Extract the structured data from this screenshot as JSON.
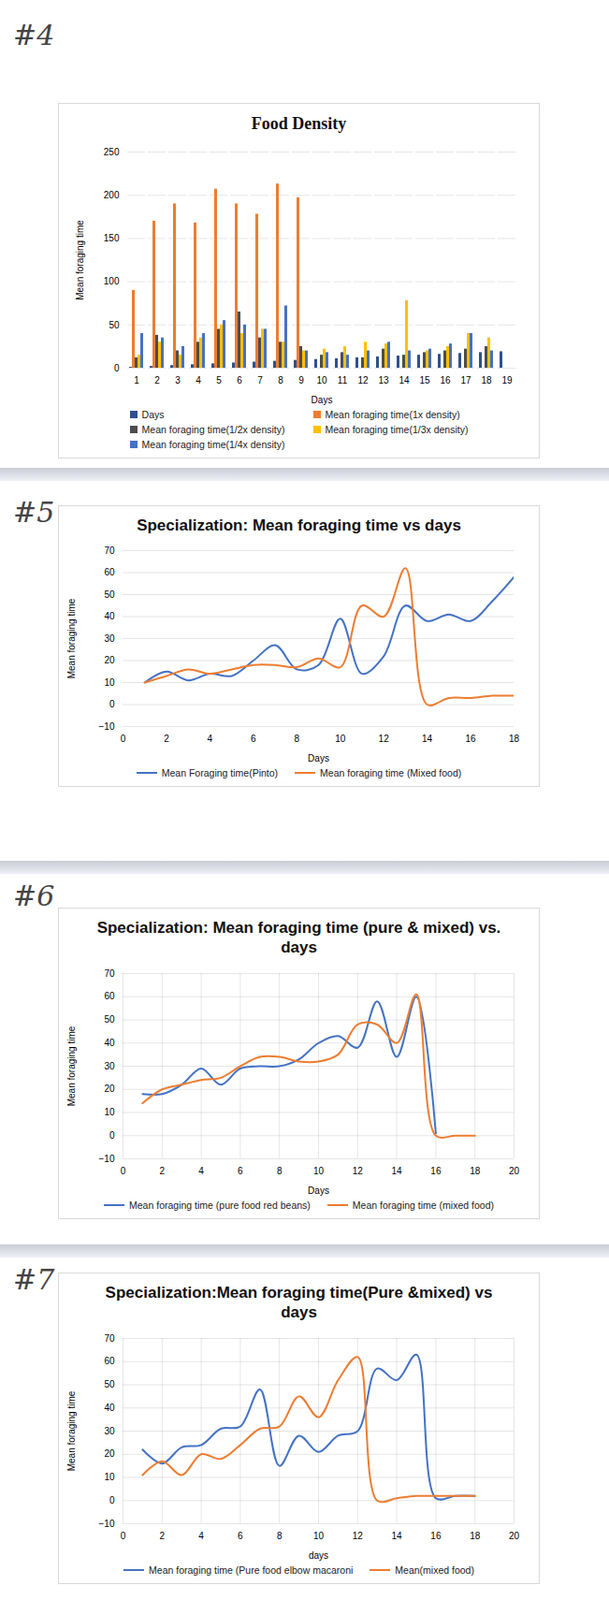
{
  "chart_data": [
    {
      "type": "bar",
      "title": "Food Density",
      "annotations": [
        "#4"
      ],
      "x_label": "Days",
      "y_label": "Mean foraging time",
      "categories": [
        "1",
        "2",
        "3",
        "4",
        "5",
        "6",
        "7",
        "8",
        "9",
        "10",
        "11",
        "12",
        "13",
        "14",
        "15",
        "16",
        "17",
        "18",
        "19"
      ],
      "series": [
        {
          "name": "Days",
          "color": "#2f4f8f",
          "values": [
            1,
            2,
            3,
            4,
            5,
            6,
            7,
            8,
            9,
            10,
            11,
            12,
            13,
            14,
            15,
            16,
            17,
            18,
            19
          ]
        },
        {
          "name": "Mean foraging time(1x density)",
          "color": "#ed7d31",
          "values": [
            90,
            170,
            190,
            168,
            207,
            190,
            178,
            213,
            197,
            null,
            null,
            null,
            null,
            null,
            null,
            null,
            null,
            null,
            null
          ]
        },
        {
          "name": "Mean foraging time(1/2x density)",
          "color": "#4d4d4d",
          "values": [
            12,
            38,
            20,
            30,
            45,
            65,
            35,
            30,
            25,
            15,
            18,
            12,
            22,
            15,
            18,
            20,
            22,
            25,
            null
          ]
        },
        {
          "name": "Mean foraging time(1/3x density)",
          "color": "#ffc000",
          "values": [
            15,
            30,
            15,
            35,
            50,
            40,
            45,
            30,
            20,
            22,
            25,
            30,
            28,
            78,
            20,
            25,
            40,
            35,
            null
          ]
        },
        {
          "name": "Mean foraging time(1/4x density)",
          "color": "#4472c4",
          "values": [
            40,
            35,
            25,
            40,
            55,
            50,
            45,
            72,
            20,
            18,
            15,
            20,
            30,
            20,
            22,
            28,
            40,
            20,
            null
          ]
        }
      ],
      "ylim": [
        0,
        250
      ],
      "yticks": [
        0,
        50,
        100,
        150,
        200,
        250
      ],
      "grid": true,
      "legend": "bottom"
    },
    {
      "type": "line",
      "title": "Specialization: Mean foraging time vs days",
      "annotations": [
        "#5"
      ],
      "x_label": "Days",
      "y_label": "Mean foraging time",
      "x": [
        1,
        2,
        3,
        4,
        5,
        6,
        7,
        8,
        9,
        10,
        11,
        12,
        13,
        14,
        15,
        16,
        17,
        18
      ],
      "series": [
        {
          "name": "Mean Foraging time(Pinto)",
          "color": "#4472c4",
          "values": [
            10,
            15,
            11,
            14,
            13,
            20,
            27,
            16,
            18,
            39,
            14,
            22,
            45,
            38,
            41,
            38,
            47,
            58
          ]
        },
        {
          "name": "Mean foraging time (Mixed food)",
          "color": "#ed7d31",
          "values": [
            10,
            13,
            16,
            14,
            16,
            18,
            18,
            17,
            21,
            17,
            45,
            40,
            62,
            0,
            3,
            3,
            4,
            4
          ]
        }
      ],
      "xlim": [
        0,
        18
      ],
      "xticks": [
        0,
        2,
        4,
        6,
        8,
        10,
        12,
        14,
        16,
        18
      ],
      "ylim": [
        -10,
        70
      ],
      "yticks": [
        -10,
        0,
        10,
        20,
        30,
        40,
        50,
        60,
        70
      ],
      "grid": true,
      "legend": "bottom"
    },
    {
      "type": "line",
      "title": "Specialization: Mean foraging time (pure & mixed) vs. days",
      "annotations": [
        "#6"
      ],
      "x_label": "Days",
      "y_label": "Mean foraging time",
      "x": [
        1,
        2,
        3,
        4,
        5,
        6,
        7,
        8,
        9,
        10,
        11,
        12,
        13,
        14,
        15,
        16,
        17,
        18
      ],
      "series": [
        {
          "name": "Mean foraging time (pure food red beans)",
          "color": "#4472c4",
          "values": [
            18,
            18,
            22,
            29,
            22,
            29,
            30,
            30,
            33,
            40,
            43,
            38,
            58,
            34,
            60,
            1,
            null,
            null
          ]
        },
        {
          "name": "Mean foraging time (mixed food)",
          "color": "#ed7d31",
          "values": [
            14,
            20,
            22,
            24,
            25,
            30,
            34,
            34,
            32,
            32,
            35,
            48,
            48,
            40,
            61,
            0,
            0,
            0
          ]
        }
      ],
      "xlim": [
        0,
        20
      ],
      "xticks": [
        0,
        2,
        4,
        6,
        8,
        10,
        12,
        14,
        16,
        18,
        20
      ],
      "ylim": [
        -10,
        70
      ],
      "yticks": [
        -10,
        0,
        10,
        20,
        30,
        40,
        50,
        60,
        70
      ],
      "grid": true,
      "legend": "bottom"
    },
    {
      "type": "line",
      "title": "Specialization:Mean foraging time(Pure &mixed) vs days",
      "annotations": [
        "#7"
      ],
      "x_label": "days",
      "y_label": "Mean foraging time",
      "x": [
        1,
        2,
        3,
        4,
        5,
        6,
        7,
        8,
        9,
        10,
        11,
        12,
        13,
        14,
        15,
        16,
        17,
        18
      ],
      "series": [
        {
          "name": "Mean foraging time (Pure food elbow macaroni",
          "color": "#4472c4",
          "values": [
            22,
            16,
            23,
            24,
            31,
            32,
            48,
            15,
            28,
            21,
            28,
            30,
            57,
            52,
            63,
            1,
            2,
            2
          ]
        },
        {
          "name": "Mean(mixed food)",
          "color": "#ed7d31",
          "values": [
            11,
            17,
            11,
            20,
            18,
            24,
            31,
            32,
            45,
            36,
            52,
            62,
            0,
            1,
            2,
            2,
            2,
            2
          ]
        }
      ],
      "xlim": [
        0,
        20
      ],
      "xticks": [
        0,
        2,
        4,
        6,
        8,
        10,
        12,
        14,
        16,
        18,
        20
      ],
      "ylim": [
        -10,
        70
      ],
      "yticks": [
        -10,
        0,
        10,
        20,
        30,
        40,
        50,
        60,
        70
      ],
      "grid": true,
      "legend": "bottom"
    }
  ]
}
